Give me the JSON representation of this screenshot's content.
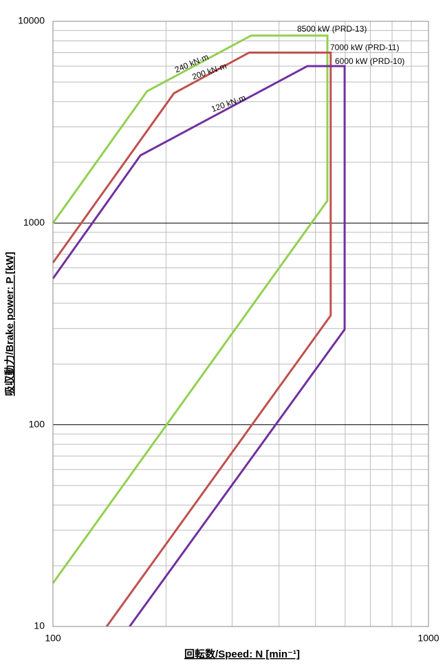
{
  "chart_data": {
    "type": "line",
    "x_label": "回転数/Speed: N [min⁻¹]",
    "y_label": "吸収動力/Brake power: P [kW]",
    "xlog": true,
    "ylog": true,
    "grid": true,
    "xlim": [
      100,
      1000
    ],
    "xticks": [
      100,
      1000
    ],
    "ylim": [
      10,
      10000
    ],
    "yticks": [
      10,
      100,
      1000,
      10000
    ],
    "series": [
      {
        "color": "#92d050",
        "x": [
          100,
          178,
          337,
          538,
          538,
          100
        ],
        "values": [
          1000,
          4500,
          8500,
          8500,
          1290,
          16.4
        ]
      },
      {
        "color": "#c0504d",
        "x": [
          100,
          210,
          333,
          549,
          549,
          139
        ],
        "values": [
          636,
          4400,
          7000,
          7000,
          348,
          10
        ]
      },
      {
        "color": "#7030a0",
        "x": [
          100,
          171,
          476,
          598,
          598,
          160
        ],
        "values": [
          531,
          2165,
          6000,
          6000,
          297,
          10
        ]
      }
    ],
    "annotations": [
      "8500 kW (PRD-13)",
      "7000 kW (PRD-11)",
      "6000 kW (PRD-10)",
      "240 kN·m",
      "200 kN·m",
      "120 kN·m"
    ]
  }
}
